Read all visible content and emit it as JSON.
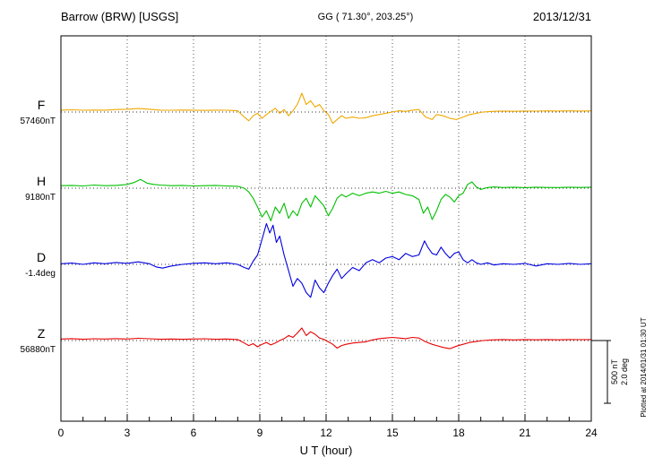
{
  "header": {
    "station": "Barrow (BRW)  [USGS]",
    "coords": "GG ( 71.30°, 203.25°)",
    "date": "2013/12/31"
  },
  "axis": {
    "xlabel": "U T (hour)",
    "xmin": 0,
    "xmax": 24,
    "major_ticks": [
      0,
      3,
      6,
      9,
      12,
      15,
      18,
      21,
      24
    ]
  },
  "scalebar": {
    "nt_label": "500 nT",
    "deg_label": "2.0 deg",
    "nt_value": 500,
    "deg_value": 2.0
  },
  "plotted_at": "Plotted at 2014/01/31 01:30 UT",
  "chart_data": {
    "type": "line",
    "title": "Barrow (BRW) [USGS] magnetogram 2013/12/31",
    "xlabel": "U T (hour)",
    "x_range": [
      0,
      24
    ],
    "grid": "dotted vertical at 3h intervals, dotted horizontal baselines",
    "series": [
      {
        "name": "F",
        "baseline_label": "57460nT",
        "baseline": 57460,
        "unit": "nT",
        "color": "#f0a800",
        "points": [
          [
            0,
            15
          ],
          [
            0.5,
            18
          ],
          [
            1,
            14
          ],
          [
            1.5,
            16
          ],
          [
            2,
            15
          ],
          [
            2.5,
            20
          ],
          [
            3,
            22
          ],
          [
            3.5,
            28
          ],
          [
            4,
            22
          ],
          [
            4.5,
            15
          ],
          [
            5,
            14
          ],
          [
            5.5,
            16
          ],
          [
            6,
            15
          ],
          [
            6.5,
            13
          ],
          [
            7,
            15
          ],
          [
            7.5,
            14
          ],
          [
            8,
            10
          ],
          [
            8.3,
            -40
          ],
          [
            8.5,
            -70
          ],
          [
            8.7,
            -30
          ],
          [
            8.9,
            -10
          ],
          [
            9.1,
            -50
          ],
          [
            9.3,
            -20
          ],
          [
            9.5,
            5
          ],
          [
            9.7,
            30
          ],
          [
            9.9,
            -10
          ],
          [
            10.1,
            20
          ],
          [
            10.3,
            -30
          ],
          [
            10.5,
            10
          ],
          [
            10.7,
            60
          ],
          [
            10.9,
            150
          ],
          [
            11.1,
            60
          ],
          [
            11.3,
            90
          ],
          [
            11.5,
            40
          ],
          [
            11.7,
            60
          ],
          [
            11.9,
            10
          ],
          [
            12.1,
            -20
          ],
          [
            12.3,
            -90
          ],
          [
            12.5,
            -60
          ],
          [
            12.7,
            -30
          ],
          [
            12.9,
            -50
          ],
          [
            13.2,
            -40
          ],
          [
            13.5,
            -50
          ],
          [
            13.8,
            -45
          ],
          [
            14.1,
            -30
          ],
          [
            14.4,
            -20
          ],
          [
            14.7,
            -10
          ],
          [
            15,
            0
          ],
          [
            15.3,
            10
          ],
          [
            15.6,
            5
          ],
          [
            15.9,
            15
          ],
          [
            16.2,
            20
          ],
          [
            16.5,
            -40
          ],
          [
            16.8,
            -60
          ],
          [
            17,
            -20
          ],
          [
            17.3,
            -30
          ],
          [
            17.6,
            -50
          ],
          [
            17.9,
            -60
          ],
          [
            18.2,
            -40
          ],
          [
            18.5,
            -20
          ],
          [
            18.8,
            -10
          ],
          [
            19.1,
            0
          ],
          [
            19.5,
            5
          ],
          [
            20,
            8
          ],
          [
            20.5,
            6
          ],
          [
            21,
            8
          ],
          [
            21.5,
            7
          ],
          [
            22,
            9
          ],
          [
            22.5,
            8
          ],
          [
            23,
            9
          ],
          [
            23.5,
            8
          ],
          [
            24,
            9
          ]
        ]
      },
      {
        "name": "H",
        "baseline_label": "9180nT",
        "baseline": 9180,
        "unit": "nT",
        "color": "#00c000",
        "points": [
          [
            0,
            20
          ],
          [
            0.5,
            22
          ],
          [
            1,
            18
          ],
          [
            1.5,
            25
          ],
          [
            2,
            20
          ],
          [
            2.5,
            22
          ],
          [
            3,
            30
          ],
          [
            3.3,
            45
          ],
          [
            3.6,
            70
          ],
          [
            3.9,
            40
          ],
          [
            4.2,
            30
          ],
          [
            4.5,
            25
          ],
          [
            5,
            20
          ],
          [
            5.5,
            22
          ],
          [
            6,
            18
          ],
          [
            6.5,
            20
          ],
          [
            7,
            22
          ],
          [
            7.5,
            18
          ],
          [
            8,
            15
          ],
          [
            8.3,
            0
          ],
          [
            8.5,
            -30
          ],
          [
            8.7,
            -80
          ],
          [
            8.9,
            -150
          ],
          [
            9.1,
            -230
          ],
          [
            9.3,
            -180
          ],
          [
            9.5,
            -260
          ],
          [
            9.7,
            -150
          ],
          [
            9.9,
            -200
          ],
          [
            10.1,
            -120
          ],
          [
            10.3,
            -240
          ],
          [
            10.5,
            -180
          ],
          [
            10.7,
            -220
          ],
          [
            10.9,
            -120
          ],
          [
            11.1,
            -80
          ],
          [
            11.3,
            -150
          ],
          [
            11.5,
            -60
          ],
          [
            11.7,
            -100
          ],
          [
            11.9,
            -140
          ],
          [
            12.1,
            -220
          ],
          [
            12.3,
            -160
          ],
          [
            12.5,
            -80
          ],
          [
            12.7,
            -50
          ],
          [
            12.9,
            -70
          ],
          [
            13.2,
            -40
          ],
          [
            13.5,
            -60
          ],
          [
            13.8,
            -40
          ],
          [
            14.1,
            -30
          ],
          [
            14.4,
            -40
          ],
          [
            14.7,
            -25
          ],
          [
            15,
            -40
          ],
          [
            15.3,
            -30
          ],
          [
            15.6,
            -50
          ],
          [
            15.9,
            -60
          ],
          [
            16.2,
            -90
          ],
          [
            16.4,
            -200
          ],
          [
            16.6,
            -150
          ],
          [
            16.8,
            -250
          ],
          [
            17,
            -180
          ],
          [
            17.2,
            -90
          ],
          [
            17.4,
            -50
          ],
          [
            17.6,
            -70
          ],
          [
            17.8,
            -110
          ],
          [
            18,
            -60
          ],
          [
            18.2,
            -40
          ],
          [
            18.4,
            30
          ],
          [
            18.6,
            50
          ],
          [
            18.8,
            10
          ],
          [
            19,
            -10
          ],
          [
            19.3,
            5
          ],
          [
            19.6,
            10
          ],
          [
            20,
            5
          ],
          [
            20.5,
            8
          ],
          [
            21,
            4
          ],
          [
            21.5,
            8
          ],
          [
            22,
            6
          ],
          [
            22.5,
            5
          ],
          [
            23,
            8
          ],
          [
            23.5,
            6
          ],
          [
            24,
            8
          ]
        ]
      },
      {
        "name": "D",
        "baseline_label": "-1.4deg",
        "baseline": -1.4,
        "unit": "deg",
        "color": "#0000e0",
        "points": [
          [
            0,
            0.02
          ],
          [
            0.5,
            0.04
          ],
          [
            1,
            0
          ],
          [
            1.5,
            0.05
          ],
          [
            2,
            0.02
          ],
          [
            2.5,
            0.06
          ],
          [
            3,
            0.03
          ],
          [
            3.5,
            0.08
          ],
          [
            4,
            0.02
          ],
          [
            4.3,
            -0.08
          ],
          [
            4.6,
            -0.12
          ],
          [
            5,
            -0.05
          ],
          [
            5.5,
            0
          ],
          [
            6,
            0.03
          ],
          [
            6.5,
            0.05
          ],
          [
            7,
            0.02
          ],
          [
            7.5,
            0.05
          ],
          [
            8,
            0
          ],
          [
            8.3,
            -0.1
          ],
          [
            8.5,
            -0.15
          ],
          [
            8.7,
            0.1
          ],
          [
            8.9,
            0.3
          ],
          [
            9.1,
            0.8
          ],
          [
            9.3,
            1.3
          ],
          [
            9.45,
            1.0
          ],
          [
            9.6,
            1.25
          ],
          [
            9.75,
            0.7
          ],
          [
            9.9,
            0.9
          ],
          [
            10.1,
            0.3
          ],
          [
            10.3,
            -0.2
          ],
          [
            10.5,
            -0.7
          ],
          [
            10.7,
            -0.45
          ],
          [
            10.9,
            -0.6
          ],
          [
            11.1,
            -0.9
          ],
          [
            11.3,
            -1.05
          ],
          [
            11.5,
            -0.5
          ],
          [
            11.7,
            -0.75
          ],
          [
            11.9,
            -0.9
          ],
          [
            12.1,
            -0.6
          ],
          [
            12.3,
            -0.35
          ],
          [
            12.5,
            -0.15
          ],
          [
            12.7,
            -0.45
          ],
          [
            12.9,
            -0.3
          ],
          [
            13.2,
            -0.1
          ],
          [
            13.5,
            -0.2
          ],
          [
            13.8,
            0.05
          ],
          [
            14.1,
            0.15
          ],
          [
            14.4,
            0.05
          ],
          [
            14.7,
            0.2
          ],
          [
            15,
            0.25
          ],
          [
            15.3,
            0.15
          ],
          [
            15.6,
            0.35
          ],
          [
            15.9,
            0.25
          ],
          [
            16.2,
            0.3
          ],
          [
            16.45,
            0.75
          ],
          [
            16.6,
            0.55
          ],
          [
            16.8,
            0.35
          ],
          [
            17,
            0.3
          ],
          [
            17.2,
            0.55
          ],
          [
            17.4,
            0.35
          ],
          [
            17.6,
            0.2
          ],
          [
            17.8,
            0.35
          ],
          [
            18,
            0.4
          ],
          [
            18.2,
            0.15
          ],
          [
            18.4,
            0.05
          ],
          [
            18.6,
            0.15
          ],
          [
            18.8,
            0.05
          ],
          [
            19,
            0
          ],
          [
            19.3,
            0.05
          ],
          [
            19.6,
            -0.02
          ],
          [
            20,
            0.02
          ],
          [
            20.5,
            0
          ],
          [
            21,
            0.03
          ],
          [
            21.5,
            -0.05
          ],
          [
            22,
            0.02
          ],
          [
            22.5,
            0
          ],
          [
            23,
            0.03
          ],
          [
            23.5,
            0
          ],
          [
            24,
            0.02
          ]
        ]
      },
      {
        "name": "Z",
        "baseline_label": "56880nT",
        "baseline": 56880,
        "unit": "nT",
        "color": "#e80000",
        "points": [
          [
            0,
            12
          ],
          [
            0.5,
            15
          ],
          [
            1,
            10
          ],
          [
            1.5,
            14
          ],
          [
            2,
            12
          ],
          [
            2.5,
            15
          ],
          [
            3,
            12
          ],
          [
            3.5,
            18
          ],
          [
            4,
            14
          ],
          [
            4.5,
            10
          ],
          [
            5,
            12
          ],
          [
            5.5,
            10
          ],
          [
            6,
            12
          ],
          [
            6.5,
            14
          ],
          [
            7,
            10
          ],
          [
            7.5,
            12
          ],
          [
            8,
            8
          ],
          [
            8.3,
            -20
          ],
          [
            8.5,
            -40
          ],
          [
            8.7,
            -25
          ],
          [
            8.9,
            -50
          ],
          [
            9.1,
            -30
          ],
          [
            9.3,
            -15
          ],
          [
            9.5,
            -35
          ],
          [
            9.7,
            -20
          ],
          [
            9.9,
            0
          ],
          [
            10.1,
            15
          ],
          [
            10.3,
            40
          ],
          [
            10.5,
            25
          ],
          [
            10.7,
            60
          ],
          [
            10.9,
            100
          ],
          [
            11.1,
            40
          ],
          [
            11.3,
            70
          ],
          [
            11.5,
            50
          ],
          [
            11.7,
            20
          ],
          [
            11.9,
            10
          ],
          [
            12.1,
            -10
          ],
          [
            12.3,
            -30
          ],
          [
            12.5,
            -60
          ],
          [
            12.7,
            -40
          ],
          [
            12.9,
            -30
          ],
          [
            13.2,
            -20
          ],
          [
            13.5,
            -15
          ],
          [
            13.8,
            -10
          ],
          [
            14.1,
            5
          ],
          [
            14.4,
            15
          ],
          [
            14.7,
            20
          ],
          [
            15,
            25
          ],
          [
            15.3,
            20
          ],
          [
            15.6,
            15
          ],
          [
            15.9,
            25
          ],
          [
            16.2,
            20
          ],
          [
            16.5,
            -10
          ],
          [
            16.8,
            -30
          ],
          [
            17,
            -40
          ],
          [
            17.3,
            -55
          ],
          [
            17.6,
            -65
          ],
          [
            17.9,
            -45
          ],
          [
            18.2,
            -30
          ],
          [
            18.5,
            -15
          ],
          [
            18.8,
            -8
          ],
          [
            19.1,
            0
          ],
          [
            19.5,
            5
          ],
          [
            20,
            8
          ],
          [
            20.5,
            5
          ],
          [
            21,
            8
          ],
          [
            21.5,
            6
          ],
          [
            22,
            8
          ],
          [
            22.5,
            6
          ],
          [
            23,
            8
          ],
          [
            23.5,
            7
          ],
          [
            24,
            8
          ]
        ]
      }
    ]
  }
}
